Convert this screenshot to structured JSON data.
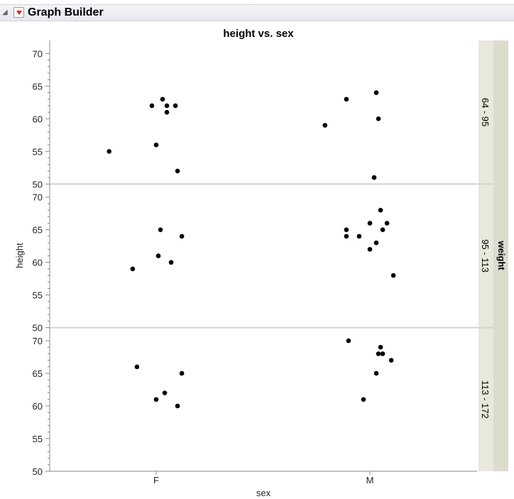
{
  "app": {
    "title": "Graph Builder"
  },
  "chart_data": {
    "type": "scatter",
    "title": "height vs. sex",
    "xlabel": "sex",
    "ylabel": "height",
    "categories": [
      "F",
      "M"
    ],
    "ylim": [
      50,
      72
    ],
    "yticks": [
      50,
      55,
      60,
      65,
      70
    ],
    "grid": false,
    "facet_label": "weight",
    "panels": [
      {
        "label": "64 - 95",
        "points": [
          {
            "x": "F",
            "jitter": 0.03,
            "y": 63
          },
          {
            "x": "F",
            "jitter": -0.02,
            "y": 62
          },
          {
            "x": "F",
            "jitter": 0.05,
            "y": 62
          },
          {
            "x": "F",
            "jitter": 0.09,
            "y": 62
          },
          {
            "x": "F",
            "jitter": 0.05,
            "y": 61
          },
          {
            "x": "F",
            "jitter": 0.0,
            "y": 56
          },
          {
            "x": "F",
            "jitter": -0.22,
            "y": 55
          },
          {
            "x": "F",
            "jitter": 0.1,
            "y": 52
          },
          {
            "x": "M",
            "jitter": 0.03,
            "y": 64
          },
          {
            "x": "M",
            "jitter": -0.11,
            "y": 63
          },
          {
            "x": "M",
            "jitter": 0.04,
            "y": 60
          },
          {
            "x": "M",
            "jitter": -0.21,
            "y": 59
          },
          {
            "x": "M",
            "jitter": 0.02,
            "y": 51
          }
        ]
      },
      {
        "label": "95 - 113",
        "points": [
          {
            "x": "F",
            "jitter": 0.02,
            "y": 65
          },
          {
            "x": "F",
            "jitter": 0.12,
            "y": 64
          },
          {
            "x": "F",
            "jitter": 0.01,
            "y": 61
          },
          {
            "x": "F",
            "jitter": 0.07,
            "y": 60
          },
          {
            "x": "F",
            "jitter": -0.11,
            "y": 59
          },
          {
            "x": "M",
            "jitter": 0.05,
            "y": 68
          },
          {
            "x": "M",
            "jitter": -0.0,
            "y": 66
          },
          {
            "x": "M",
            "jitter": 0.08,
            "y": 66
          },
          {
            "x": "M",
            "jitter": -0.11,
            "y": 65
          },
          {
            "x": "M",
            "jitter": 0.06,
            "y": 65
          },
          {
            "x": "M",
            "jitter": -0.11,
            "y": 64
          },
          {
            "x": "M",
            "jitter": -0.05,
            "y": 64
          },
          {
            "x": "M",
            "jitter": 0.03,
            "y": 63
          },
          {
            "x": "M",
            "jitter": -0.0,
            "y": 62
          },
          {
            "x": "M",
            "jitter": 0.11,
            "y": 58
          }
        ]
      },
      {
        "label": "113 - 172",
        "points": [
          {
            "x": "F",
            "jitter": -0.09,
            "y": 66
          },
          {
            "x": "F",
            "jitter": 0.12,
            "y": 65
          },
          {
            "x": "F",
            "jitter": 0.04,
            "y": 62
          },
          {
            "x": "F",
            "jitter": -0.0,
            "y": 61
          },
          {
            "x": "F",
            "jitter": 0.1,
            "y": 60
          },
          {
            "x": "M",
            "jitter": -0.1,
            "y": 70
          },
          {
            "x": "M",
            "jitter": 0.05,
            "y": 69
          },
          {
            "x": "M",
            "jitter": 0.04,
            "y": 68
          },
          {
            "x": "M",
            "jitter": 0.06,
            "y": 68
          },
          {
            "x": "M",
            "jitter": 0.1,
            "y": 67
          },
          {
            "x": "M",
            "jitter": 0.03,
            "y": 65
          },
          {
            "x": "M",
            "jitter": -0.03,
            "y": 61
          }
        ]
      }
    ]
  }
}
